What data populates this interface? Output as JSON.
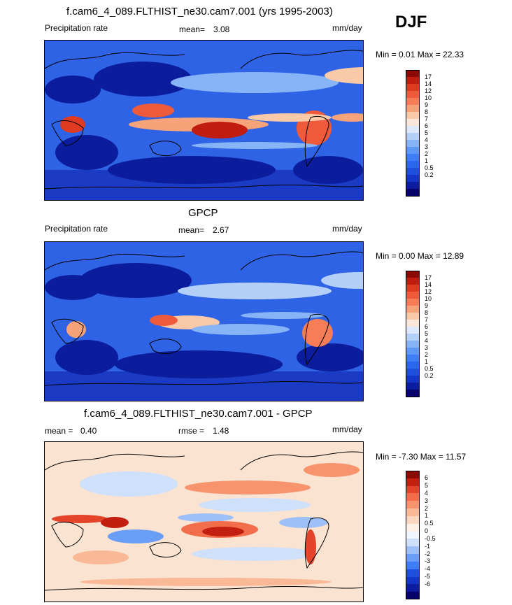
{
  "season": "DJF",
  "colors": {
    "full_levels": [
      "#08026b",
      "#0b1d9c",
      "#1336c7",
      "#1f4fe0",
      "#2b66f0",
      "#3f7df5",
      "#5e98f5",
      "#87b4f7",
      "#b4d0f9",
      "#dde9fb",
      "#fbe7da",
      "#f9c9a8",
      "#f7a37a",
      "#f57d57",
      "#ef5a3a",
      "#e03a20",
      "#c01d10",
      "#8c0a05"
    ],
    "diff_levels": [
      "#08026b",
      "#0b1d9c",
      "#1336c7",
      "#1f4fe0",
      "#3f7df5",
      "#6a9ef6",
      "#9ec0f8",
      "#cfe0fb",
      "#f1f5fd",
      "#fdf0e6",
      "#fbd7bf",
      "#f9b896",
      "#f7946e",
      "#f26d4a",
      "#e3442a",
      "#c31f11",
      "#8c0a05"
    ]
  },
  "panels": [
    {
      "id": "model",
      "title": "f.cam6_4_089.FLTHIST_ne30.cam7.001 (yrs 1995-2003)",
      "left_label": "Precipitation rate",
      "stat1_label": "mean=",
      "stat1_value": "3.08",
      "stat2_label": "",
      "stat2_value": "",
      "units": "mm/day",
      "minmax": "Min =   0.01 Max =  22.33",
      "colorbar_labels": [
        "17",
        "14",
        "12",
        "10",
        "9",
        "8",
        "7",
        "6",
        "5",
        "4",
        "3",
        "2",
        "1",
        "0.5",
        "0.2"
      ]
    },
    {
      "id": "obs",
      "title": "GPCP",
      "left_label": "Precipitation rate",
      "stat1_label": "mean=",
      "stat1_value": "2.67",
      "stat2_label": "",
      "stat2_value": "",
      "units": "mm/day",
      "minmax": "Min =   0.00 Max =  12.89",
      "colorbar_labels": [
        "17",
        "14",
        "12",
        "10",
        "9",
        "8",
        "7",
        "6",
        "5",
        "4",
        "3",
        "2",
        "1",
        "0.5",
        "0.2"
      ]
    },
    {
      "id": "diff",
      "title": "f.cam6_4_089.FLTHIST_ne30.cam7.001 - GPCP",
      "left_label": "mean =",
      "stat1_label": "",
      "stat1_value": "0.40",
      "stat2_label": "rmse =",
      "stat2_value": "1.48",
      "units": "mm/day",
      "minmax": "Min =  -7.30 Max =  11.57",
      "colorbar_labels": [
        "6",
        "5",
        "4",
        "3",
        "2",
        "1",
        "0.5",
        "0",
        "-0.5",
        "-1",
        "-2",
        "-3",
        "-4",
        "-5",
        "-6"
      ]
    }
  ]
}
